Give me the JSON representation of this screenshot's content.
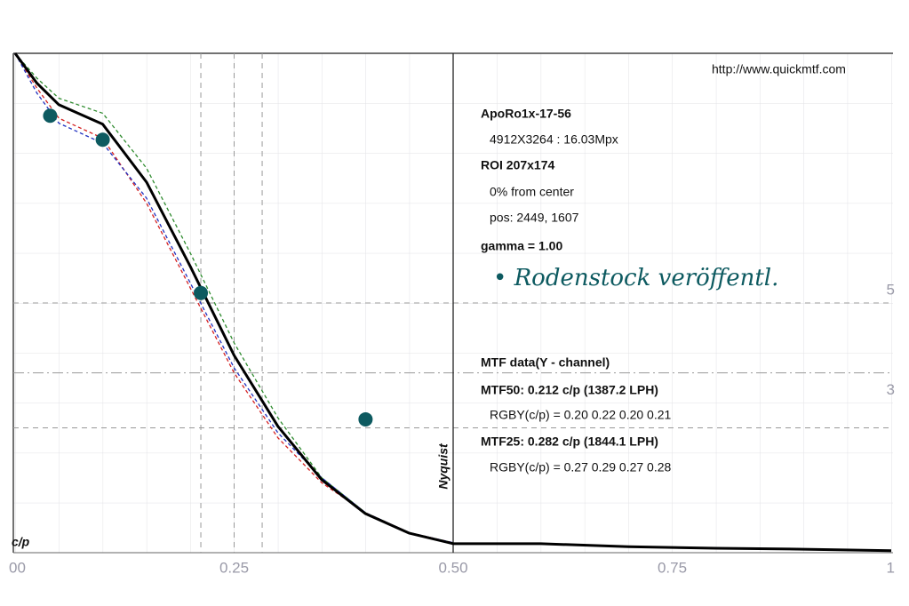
{
  "chart_data": {
    "type": "line",
    "x": [
      0,
      0.025,
      0.05,
      0.1,
      0.15,
      0.2,
      0.25,
      0.3,
      0.35,
      0.4,
      0.45,
      0.5,
      0.6,
      0.7,
      0.8,
      0.9,
      1.0
    ],
    "series": [
      {
        "color": "#2e8b2e",
        "values": [
          1.0,
          0.95,
          0.91,
          0.88,
          0.77,
          0.6,
          0.42,
          0.27,
          0.15,
          0.08,
          0.04,
          0.02,
          null,
          null,
          null,
          null,
          null
        ]
      },
      {
        "color": "#d42020",
        "values": [
          1.0,
          0.93,
          0.87,
          0.83,
          0.7,
          0.53,
          0.36,
          0.23,
          0.14,
          0.08,
          0.04,
          0.02,
          null,
          null,
          null,
          null,
          null
        ]
      },
      {
        "color": "#2030c0",
        "values": [
          1.0,
          0.92,
          0.86,
          0.82,
          0.71,
          0.54,
          0.37,
          0.24,
          0.15,
          0.08,
          0.04,
          0.02,
          null,
          null,
          null,
          null,
          null
        ]
      },
      {
        "color": "#000000",
        "values": [
          1.0,
          0.94,
          0.897,
          0.858,
          0.742,
          0.573,
          0.395,
          0.253,
          0.146,
          0.078,
          0.039,
          0.018,
          0.018,
          0.012,
          0.009,
          0.007,
          0.004
        ]
      }
    ],
    "points": {
      "color": "#0d5a60",
      "x": [
        0.04,
        0.1,
        0.212,
        0.4
      ],
      "values": [
        0.875,
        0.827,
        0.52,
        0.267
      ]
    },
    "xlim": [
      0,
      1
    ],
    "ylim": [
      0,
      1
    ],
    "xticks": [
      {
        "value": 0,
        "label": "00"
      },
      0.25,
      {
        "value": 0.5,
        "label": "0.50"
      },
      0.75,
      1
    ],
    "yticks": [
      {
        "value": 0.5,
        "label": "5"
      },
      {
        "value": 0.3,
        "label": "3"
      }
    ],
    "x_markers": [
      0.212,
      0.25,
      0.282
    ],
    "y_markers": [
      0.5,
      0.36,
      0.25
    ],
    "nyquist": 0.5,
    "nyquist_label": "Nyquist",
    "xlabel": "c/p",
    "url": "http://www.quickmtf.com",
    "annotations": [
      "ApoRo1x-17-56",
      "4912X3264 : 16.03Mpx",
      "ROI 207x174",
      "0% from center",
      "pos: 2449, 1607",
      "gamma = 1.00",
      "• Rodenstock veröffentl.",
      "MTF data(Y - channel)",
      "MTF50: 0.212 c/p (1387.2 LPH)",
      "RGBY(c/p) = 0.20 0.22 0.20 0.21",
      "MTF25: 0.282 c/p (1844.1 LPH)",
      "RGBY(c/p) = 0.27 0.29 0.27 0.28"
    ]
  }
}
